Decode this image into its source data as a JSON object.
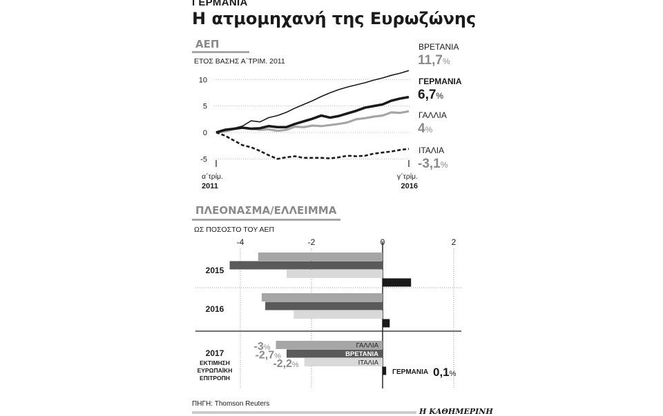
{
  "header": {
    "kicker": "ΓΕΡΜΑΝΙΑ",
    "title": "Η ατμομηχανή της Ευρωζώνης"
  },
  "gdp_section": {
    "title": "ΑΕΠ",
    "subtitle": "ΕΤΟΣ ΒΑΣΗΣ Α΄ΤΡΙΜ. 2011"
  },
  "balance_section": {
    "title": "ΠΛΕΟΝΑΣΜΑ/ΕΛΛΕΙΜΜΑ",
    "subtitle": "ΩΣ ΠΟΣΟΣΤΟ ΤΟΥ ΑΕΠ"
  },
  "footer": {
    "source": "ΠΗΓΗ: Thomson Reuters",
    "brand": "Η ΚΑΘΗΜΕΡΙΝΗ"
  },
  "colors": {
    "uk": "#1a1a1a",
    "germany": "#1a1a1a",
    "france": "#a6a6a6",
    "italy": "#1a1a1a",
    "bar_france": "#a6a6a6",
    "bar_uk": "#5a5a5a",
    "bar_italy": "#d9d9d9",
    "bar_germany": "#1a1a1a",
    "label_grey": "#8a8a8a"
  },
  "chart_data": [
    {
      "type": "line",
      "title": "ΑΕΠ",
      "subtitle": "ΕΤΟΣ ΒΑΣΗΣ Α΄ΤΡΙΜ. 2011",
      "x": [
        "Q1 2011",
        "Q2 2011",
        "Q3 2011",
        "Q4 2011",
        "Q1 2012",
        "Q2 2012",
        "Q3 2012",
        "Q4 2012",
        "Q1 2013",
        "Q2 2013",
        "Q3 2013",
        "Q4 2013",
        "Q1 2014",
        "Q2 2014",
        "Q3 2014",
        "Q4 2014",
        "Q1 2015",
        "Q2 2015",
        "Q3 2015",
        "Q4 2015",
        "Q1 2016",
        "Q2 2016",
        "Q3 2016"
      ],
      "x_tick_labels": [
        {
          "top": "α΄τρίμ.",
          "bottom": "2011"
        },
        {
          "top": "γ΄τρίμ.",
          "bottom": "2016"
        }
      ],
      "ylim": [
        -6,
        12
      ],
      "yticks": [
        10,
        5,
        0,
        -5
      ],
      "grid": true,
      "series": [
        {
          "name": "ΒΡΕΤΑΝΙΑ",
          "end_label": "11,7",
          "values": [
            0,
            0.4,
            0.8,
            1.2,
            2.2,
            2.0,
            2.8,
            3.2,
            3.8,
            4.6,
            5.3,
            6.0,
            6.8,
            7.5,
            8.1,
            8.6,
            9.0,
            9.4,
            9.9,
            10.3,
            10.8,
            11.2,
            11.7
          ]
        },
        {
          "name": "ΓΕΡΜΑΝΙΑ",
          "end_label": "6,7",
          "values": [
            0,
            0.5,
            0.7,
            0.9,
            0.7,
            0.8,
            1.2,
            1.0,
            1.0,
            1.6,
            2.1,
            2.6,
            3.2,
            2.8,
            3.1,
            3.6,
            4.1,
            4.7,
            5.0,
            5.3,
            6.0,
            6.4,
            6.7
          ]
        },
        {
          "name": "ΓΑΛΛΙΑ",
          "end_label": "4",
          "values": [
            0,
            0.2,
            0.6,
            0.9,
            0.7,
            0.5,
            0.6,
            0.3,
            0.5,
            1.1,
            1.0,
            1.3,
            1.2,
            1.4,
            1.6,
            1.9,
            2.5,
            2.7,
            3.0,
            3.2,
            3.8,
            3.7,
            4.0
          ]
        },
        {
          "name": "ΙΤΑΛΙΑ",
          "end_label": "-3,1",
          "values": [
            0,
            -0.6,
            -1.5,
            -2.4,
            -2.8,
            -3.5,
            -4.3,
            -5.0,
            -4.7,
            -4.5,
            -4.8,
            -4.8,
            -4.8,
            -4.9,
            -4.7,
            -4.4,
            -4.5,
            -4.4,
            -4.0,
            -3.8,
            -3.6,
            -3.3,
            -3.1
          ]
        }
      ]
    },
    {
      "type": "bar",
      "orientation": "horizontal",
      "title": "ΠΛΕΟΝΑΣΜΑ/ΕΛΛΕΙΜΜΑ",
      "subtitle": "ΩΣ ΠΟΣΟΣΤΟ ΤΟΥ ΑΕΠ",
      "xlim": [
        -4.2,
        2.2
      ],
      "xticks": [
        -4,
        -2,
        0,
        2
      ],
      "xtick_labels": [
        "-4",
        "-2",
        "0",
        "2"
      ],
      "categories": [
        "2015",
        "2016",
        "2017"
      ],
      "category_notes": {
        "2017": [
          "ΕΚΤΙΜΗΣΗ",
          "ΕΥΡΩΠΑΪΚΗ",
          "ΕΠΙΤΡΟΠΗ"
        ]
      },
      "series": [
        {
          "name": "ΓΑΛΛΙΑ",
          "values": [
            -3.5,
            -3.4,
            -3.0
          ],
          "value_label_2017": "-3"
        },
        {
          "name": "ΒΡΕΤΑΝΙΑ",
          "values": [
            -4.3,
            -3.3,
            -2.7
          ],
          "value_label_2017": "-2,7"
        },
        {
          "name": "ΙΤΑΛΙΑ",
          "values": [
            -2.7,
            -2.5,
            -2.2
          ],
          "value_label_2017": "-2,2"
        },
        {
          "name": "ΓΕΡΜΑΝΙΑ",
          "values": [
            0.8,
            0.2,
            0.1
          ],
          "value_label_2017": "0,1"
        }
      ],
      "unit": "%"
    }
  ]
}
